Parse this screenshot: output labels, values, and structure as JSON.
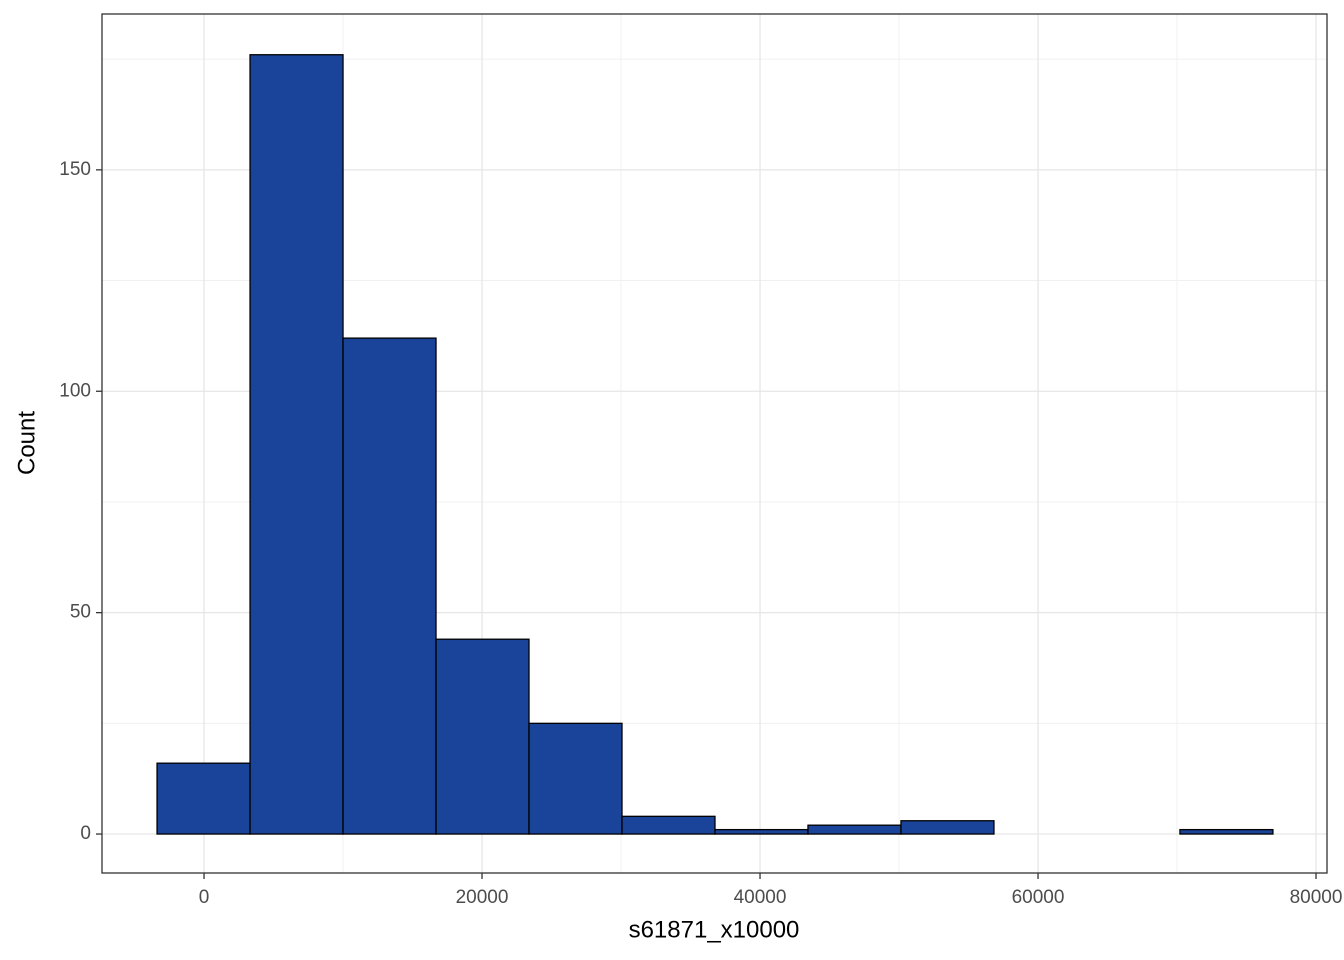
{
  "chart_data": {
    "type": "histogram",
    "x_label": "s61871_x10000",
    "y_label": "Count",
    "bins": [
      -3380,
      3310,
      10000,
      16690,
      23380,
      30070,
      36760,
      43450,
      50140,
      56830,
      63520,
      70210,
      76900
    ],
    "values": [
      16,
      176,
      112,
      44,
      25,
      4,
      1,
      2,
      3,
      0,
      0,
      1
    ],
    "color": "#1a4499",
    "edgecolor": "#000000",
    "xlim": [
      -7340,
      80790
    ],
    "ylim": [
      -8.8,
      185.2
    ],
    "xticks": [
      0,
      20000,
      40000,
      60000,
      80000
    ],
    "yticks": [
      0,
      50,
      100,
      150
    ],
    "minor_xticks": [
      10000,
      30000,
      50000,
      70000
    ],
    "minor_yticks": [
      25,
      75,
      125,
      175
    ],
    "grid": true
  }
}
